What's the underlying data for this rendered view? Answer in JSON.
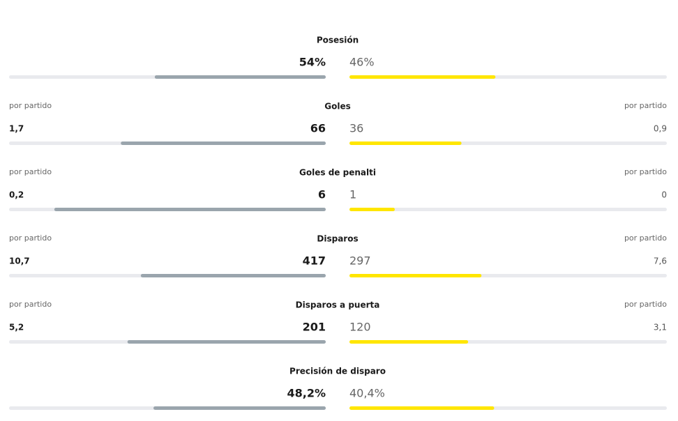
{
  "per_match_text": "por partido",
  "rows": [
    {
      "title": "Posesión",
      "home": {
        "value": 54,
        "label": "54%"
      },
      "away": {
        "value": 46,
        "label": "46%"
      }
    },
    {
      "title": "Goles",
      "home": 66,
      "away": 36,
      "home_per_match": "1,7",
      "away_per_match": "0,9"
    },
    {
      "title": "Goles de penalti",
      "home": 6,
      "away": 1,
      "home_per_match": "0,2",
      "away_per_match": "0"
    },
    {
      "title": "Disparos",
      "home": 417,
      "away": 297,
      "home_per_match": "10,7",
      "away_per_match": "7,6"
    },
    {
      "title": "Disparos a puerta",
      "home": 201,
      "away": 120,
      "home_per_match": "5,2",
      "away_per_match": "3,1"
    },
    {
      "title": "Precisión de disparo",
      "home": {
        "value": 48.2,
        "label": "48,2%"
      },
      "away": {
        "value": 40.4,
        "label": "40,4%"
      }
    }
  ]
}
